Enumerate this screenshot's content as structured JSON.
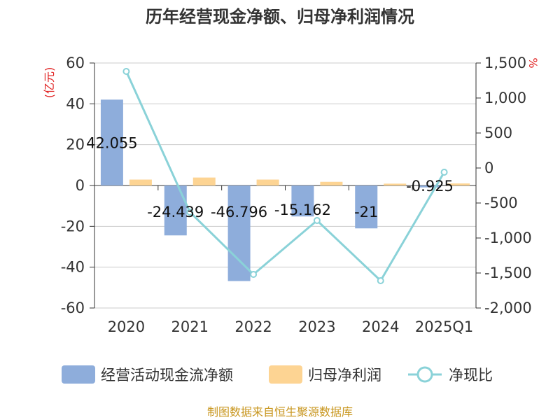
{
  "chart_data": {
    "type": "bar",
    "title": "历年经营现金净额、归母净利润情况",
    "categories": [
      "2020",
      "2021",
      "2022",
      "2023",
      "2024",
      "2025Q1"
    ],
    "left_axis_unit": "(亿元)",
    "right_axis_unit": "%",
    "ylim_left": [
      -60,
      60
    ],
    "yticks_left": [
      "60",
      "40",
      "20",
      "0",
      "-20",
      "-40",
      "-60"
    ],
    "ylim_right": [
      -2000,
      1500
    ],
    "yticks_right": [
      "1,500",
      "1,000",
      "500",
      "0",
      "-500",
      "-1,000",
      "-1,500",
      "-2,000"
    ],
    "grid": true,
    "legend_position": "bottom",
    "series": [
      {
        "name": "经营活动现金流净额",
        "kind": "bar",
        "axis": "left",
        "color": "#8eaddb",
        "values": [
          42.055,
          -24.439,
          -46.796,
          -15.162,
          -21,
          -0.925
        ],
        "labels": [
          "42.055",
          "-24.439",
          "-46.796",
          "-15.162",
          "-21",
          "-0.925"
        ]
      },
      {
        "name": "归母净利润",
        "kind": "bar",
        "axis": "left",
        "color": "#fdd493",
        "values": [
          2.9,
          3.9,
          2.9,
          1.8,
          0.9,
          1.0
        ]
      },
      {
        "name": "净现比",
        "kind": "line",
        "axis": "right",
        "color": "#8ad2d8",
        "values": [
          1380,
          -630,
          -1520,
          -750,
          -1610,
          -60
        ]
      }
    ]
  },
  "source": "制图数据来自恒生聚源数据库"
}
